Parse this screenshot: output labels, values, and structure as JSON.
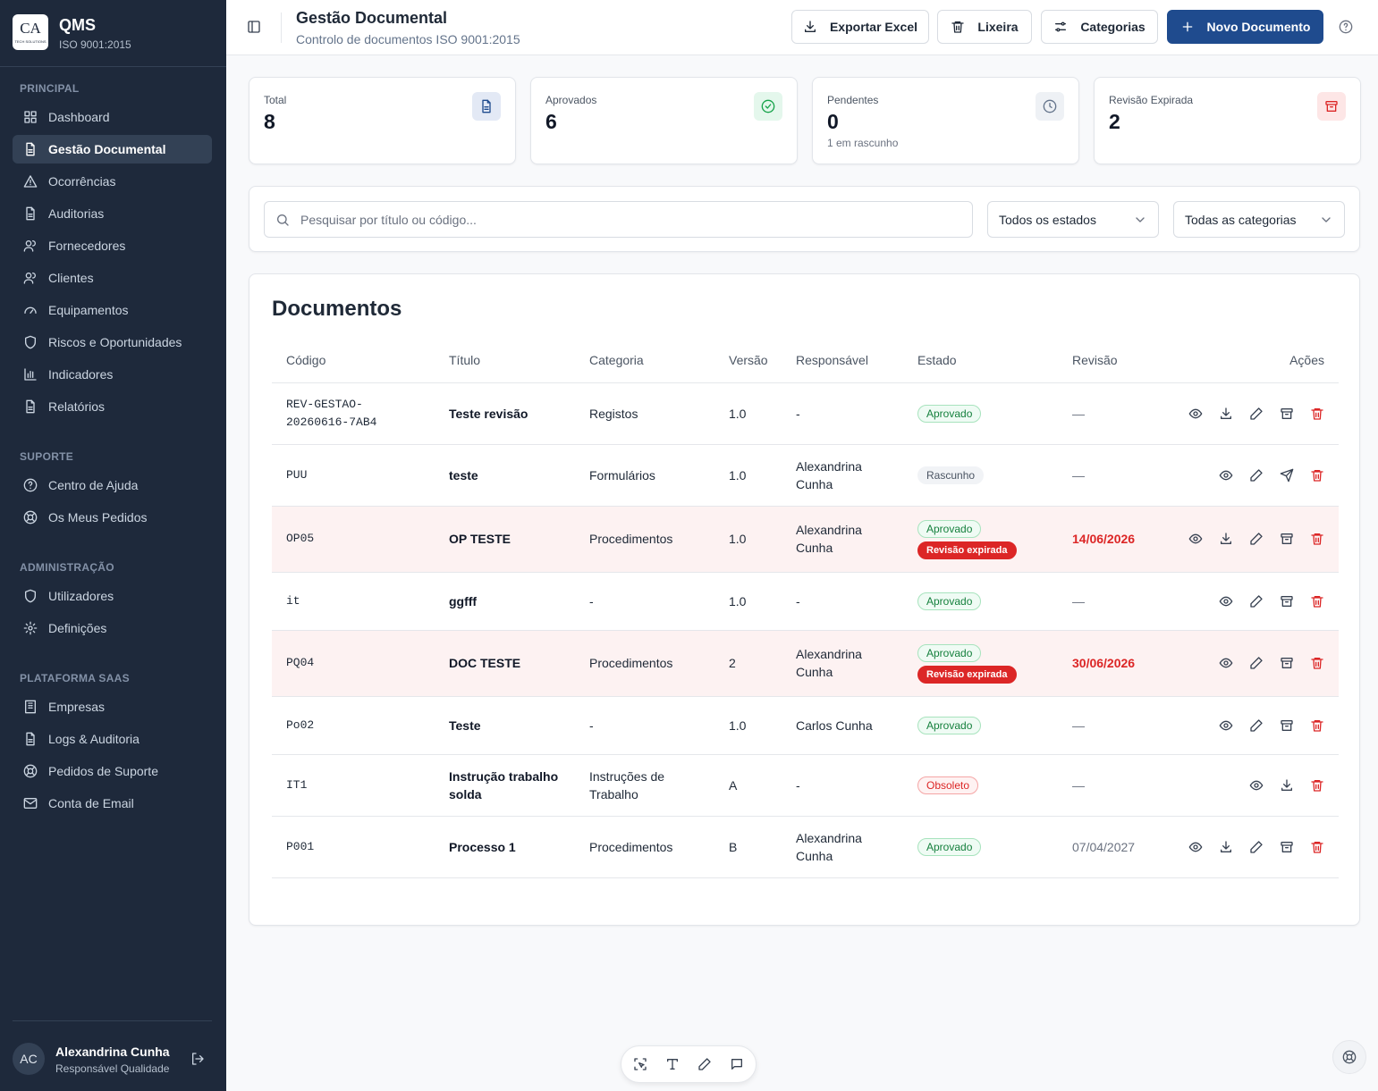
{
  "sidebar": {
    "logo": "CA",
    "logo_tagline": "TECH SOLUTIONS",
    "app_name": "QMS",
    "app_subtitle": "ISO 9001:2015",
    "sections": [
      {
        "title": "PRINCIPAL",
        "items": [
          "Dashboard",
          "Gestão Documental",
          "Ocorrências",
          "Auditorias",
          "Fornecedores",
          "Clientes",
          "Equipamentos",
          "Riscos e Oportunidades",
          "Indicadores",
          "Relatórios"
        ]
      },
      {
        "title": "SUPORTE",
        "items": [
          "Centro de Ajuda",
          "Os Meus Pedidos"
        ]
      },
      {
        "title": "ADMINISTRAÇÃO",
        "items": [
          "Utilizadores",
          "Definições"
        ]
      },
      {
        "title": "PLATAFORMA SAAS",
        "items": [
          "Empresas",
          "Logs & Auditoria",
          "Pedidos de Suporte",
          "Conta de Email"
        ]
      }
    ],
    "user": {
      "initials": "AC",
      "name": "Alexandrina Cunha",
      "role": "Responsável Qualidade"
    }
  },
  "header": {
    "title": "Gestão Documental",
    "subtitle": "Controlo de documentos ISO 9001:2015",
    "buttons": [
      "Exportar Excel",
      "Lixeira",
      "Categorias",
      "Novo Documento"
    ]
  },
  "stats": [
    {
      "label": "Total",
      "value": 8
    },
    {
      "label": "Aprovados",
      "value": 6
    },
    {
      "label": "Pendentes",
      "value": 0,
      "note": "1 em rascunho"
    },
    {
      "label": "Revisão Expirada",
      "value": 2
    }
  ],
  "filters": {
    "search_placeholder": "Pesquisar por título ou código...",
    "status_select": "Todos os estados",
    "category_select": "Todas as categorias"
  },
  "table": {
    "title": "Documentos",
    "columns": [
      "Código",
      "Título",
      "Categoria",
      "Versão",
      "Responsável",
      "Estado",
      "Revisão",
      "Ações"
    ],
    "rows": [
      {
        "code": "REV-GESTAO-20260616-7AB4",
        "title": "Teste revisão",
        "category": "Registos",
        "version": "1.0",
        "owner": "-",
        "states": [
          "Aprovado"
        ],
        "revision": "—"
      },
      {
        "code": "PUU",
        "title": "teste",
        "category": "Formulários",
        "version": "1.0",
        "owner": "Alexandrina Cunha",
        "states": [
          "Rascunho"
        ],
        "revision": "—"
      },
      {
        "code": "OP05",
        "title": "OP TESTE",
        "category": "Procedimentos",
        "version": "1.0",
        "owner": "Alexandrina Cunha",
        "states": [
          "Aprovado",
          "Revisão expirada"
        ],
        "revision": "14/06/2026"
      },
      {
        "code": "it",
        "title": "ggfff",
        "category": "-",
        "version": "1.0",
        "owner": "-",
        "states": [
          "Aprovado"
        ],
        "revision": "—"
      },
      {
        "code": "PQ04",
        "title": "DOC TESTE",
        "category": "Procedimentos",
        "version": "2",
        "owner": "Alexandrina Cunha",
        "states": [
          "Aprovado",
          "Revisão expirada"
        ],
        "revision": "30/06/2026"
      },
      {
        "code": "Po02",
        "title": "Teste",
        "category": "-",
        "version": "1.0",
        "owner": "Carlos Cunha",
        "states": [
          "Aprovado"
        ],
        "revision": "—"
      },
      {
        "code": "IT1",
        "title": "Instrução trabalho solda",
        "category": "Instruções de Trabalho",
        "version": "A",
        "owner": "-",
        "states": [
          "Obsoleto"
        ],
        "revision": "—"
      },
      {
        "code": "P001",
        "title": "Processo 1",
        "category": "Procedimentos",
        "version": "B",
        "owner": "Alexandrina Cunha",
        "states": [
          "Aprovado"
        ],
        "revision": "07/04/2027"
      }
    ]
  }
}
